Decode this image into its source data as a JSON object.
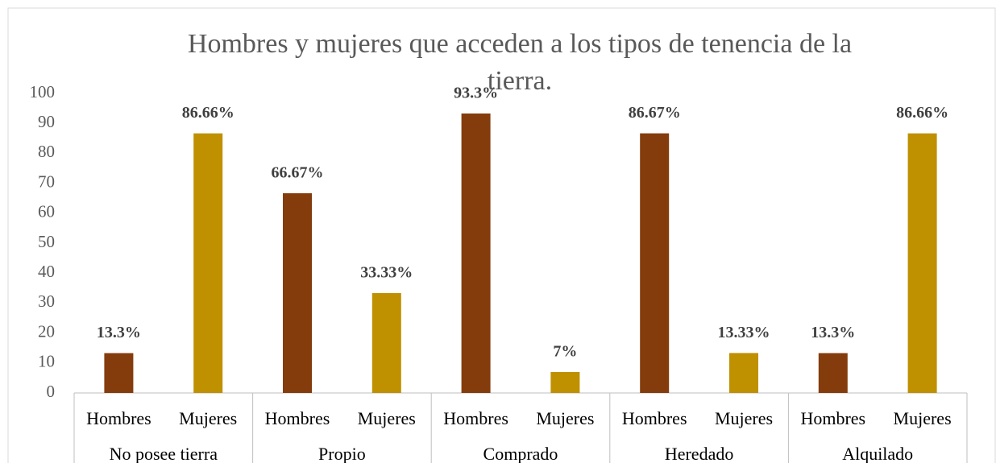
{
  "chart_data": {
    "type": "bar",
    "title": "Hombres y mujeres que acceden a los tipos de tenencia de la tierra.",
    "groups": [
      "No posee tierra",
      "Propio",
      "Comprado",
      "Heredado",
      "Alquilado"
    ],
    "categories": [
      "Hombres",
      "Mujeres",
      "Hombres",
      "Mujeres",
      "Hombres",
      "Mujeres",
      "Hombres",
      "Mujeres",
      "Hombres",
      "Mujeres"
    ],
    "values": [
      13.3,
      86.66,
      66.67,
      33.33,
      93.3,
      7,
      86.67,
      13.33,
      13.3,
      86.66
    ],
    "value_labels": [
      "13.3%",
      "86.66%",
      "66.67%",
      "33.33%",
      "93.3%",
      "7%",
      "86.67%",
      "13.33%",
      "13.3%",
      "86.66%"
    ],
    "colors": [
      "#843c0c",
      "#bf9000",
      "#843c0c",
      "#bf9000",
      "#843c0c",
      "#bf9000",
      "#843c0c",
      "#bf9000",
      "#843c0c",
      "#bf9000"
    ],
    "ylim": [
      0,
      100
    ],
    "yticks": [
      0,
      10,
      20,
      30,
      40,
      50,
      60,
      70,
      80,
      90,
      100
    ],
    "grid": false
  }
}
